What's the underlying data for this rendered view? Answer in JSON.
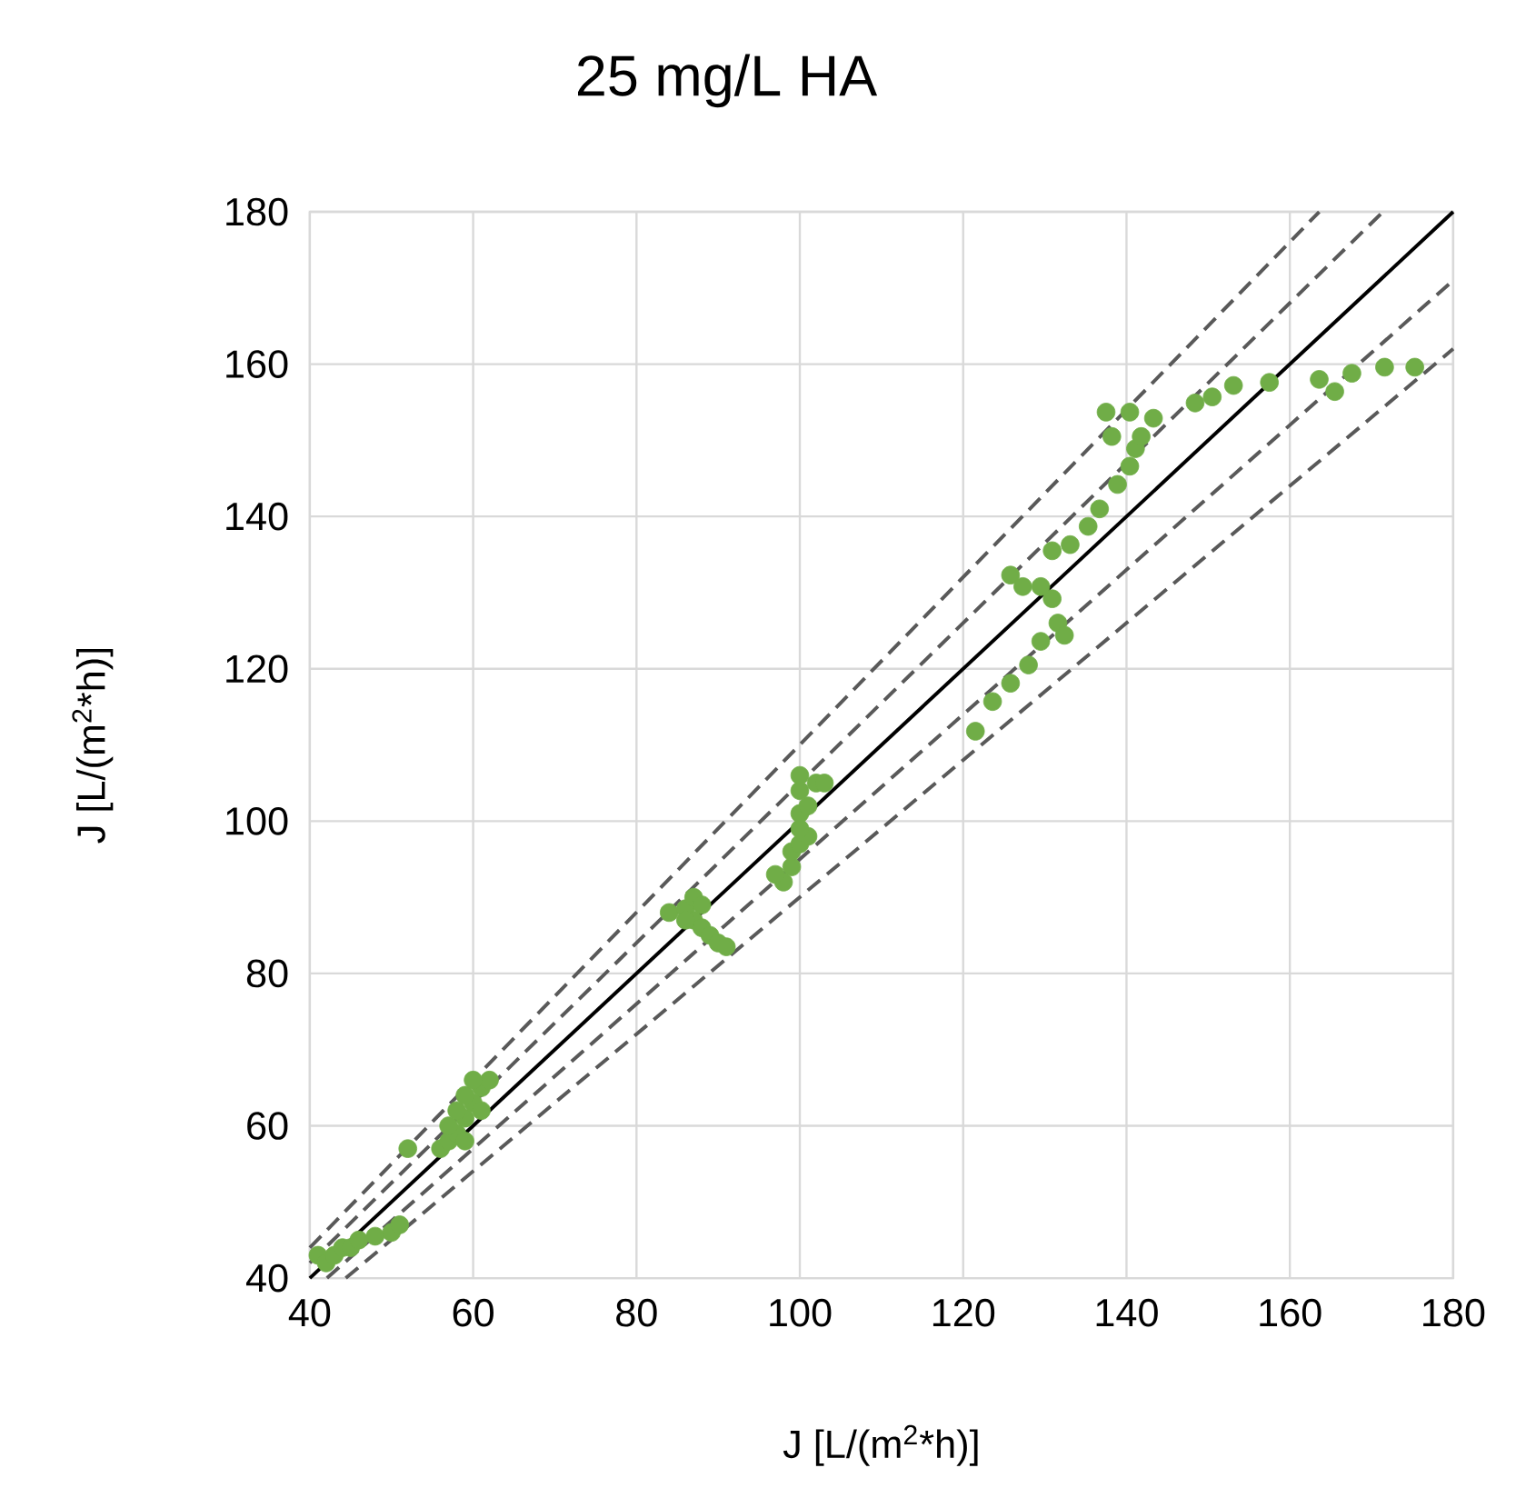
{
  "chart_data": {
    "type": "scatter",
    "title": "25 mg/L HA",
    "xlabel": "J [L/(m$^{2}$*h)]",
    "ylabel": "J [L/(m$^{2}$*h)]",
    "xlim": [
      40,
      180
    ],
    "ylim": [
      40,
      180
    ],
    "xticks": [
      40,
      60,
      80,
      100,
      120,
      140,
      160,
      180
    ],
    "yticks": [
      40,
      60,
      80,
      100,
      120,
      140,
      160,
      180
    ],
    "grid": true,
    "marker": "circle",
    "series": [
      {
        "type": "line",
        "color": "#595959",
        "line_style": "dashed",
        "marker": "none",
        "x": [
          40,
          163.6
        ],
        "values": [
          44,
          180
        ]
      },
      {
        "type": "line",
        "color": "#595959",
        "line_style": "dashed",
        "marker": "none",
        "x": [
          40,
          171.4
        ],
        "values": [
          42,
          180
        ]
      },
      {
        "type": "line",
        "color": "#000000",
        "line_style": "solid",
        "marker": "none",
        "x": [
          40,
          180
        ],
        "values": [
          40,
          180
        ]
      },
      {
        "type": "line",
        "color": "#595959",
        "line_style": "dashed",
        "marker": "none",
        "x": [
          42.1,
          180
        ],
        "values": [
          40,
          171
        ]
      },
      {
        "type": "line",
        "color": "#595959",
        "line_style": "dashed",
        "marker": "none",
        "x": [
          44.4,
          180
        ],
        "values": [
          40,
          162
        ]
      },
      {
        "color": "#70ad47",
        "x": [
          41,
          42,
          43,
          44,
          45,
          46,
          48,
          50,
          51,
          52,
          56,
          57,
          58,
          57,
          59,
          58,
          60,
          59,
          61,
          62,
          60,
          61,
          59,
          84,
          86,
          87,
          88,
          87,
          88,
          89,
          90,
          91,
          86,
          98,
          97,
          99,
          99,
          100,
          101,
          100,
          100,
          101,
          100,
          102,
          100,
          103,
          121.5,
          123.6,
          125.8,
          128,
          129.5,
          131.6,
          130.9,
          129.5,
          125.8,
          127.3,
          132.4,
          130.9,
          133.1,
          135.3,
          136.7,
          138.9,
          140.4,
          141.1,
          138.2,
          137.5,
          140.4,
          143.3,
          141.8,
          148.4,
          150.5,
          153.1,
          157.5,
          163.6,
          165.5,
          167.6,
          171.6,
          175.3
        ],
        "values": [
          43,
          42,
          43,
          44,
          44,
          45,
          45.5,
          46,
          47,
          57,
          57,
          58,
          59,
          60,
          61,
          62,
          63,
          64,
          65,
          66,
          66,
          62,
          58,
          88,
          88.5,
          90,
          89,
          87,
          86,
          85,
          84,
          83.5,
          87,
          92,
          93,
          94,
          96,
          97,
          98,
          99,
          101,
          102,
          104,
          105,
          106,
          105,
          111.8,
          115.7,
          118.1,
          120.5,
          123.6,
          126,
          129.2,
          130.8,
          132.3,
          130.8,
          124.4,
          135.5,
          136.3,
          138.7,
          141,
          144.2,
          146.6,
          148.9,
          150.5,
          153.7,
          153.7,
          152.9,
          150.5,
          154.9,
          155.7,
          157.2,
          157.6,
          158,
          156.4,
          158.8,
          159.6,
          159.6
        ]
      }
    ]
  }
}
